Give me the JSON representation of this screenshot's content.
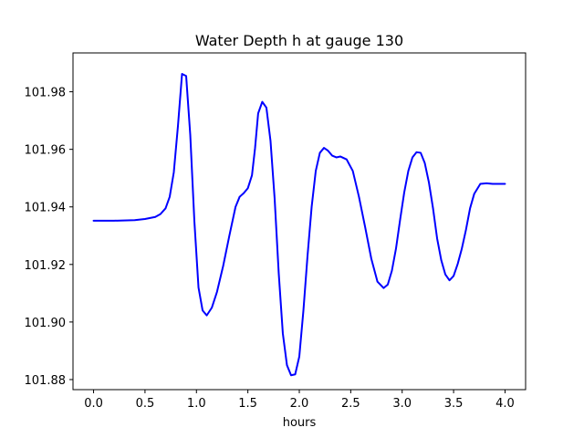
{
  "chart_data": {
    "type": "line",
    "title": "Water Depth h at gauge 130",
    "xlabel": "hours",
    "ylabel": "",
    "xlim": [
      -0.2,
      4.2
    ],
    "ylim": [
      101.8765,
      101.9935
    ],
    "grid": false,
    "x_ticks": [
      "0.0",
      "0.5",
      "1.0",
      "1.5",
      "2.0",
      "2.5",
      "3.0",
      "3.5",
      "4.0"
    ],
    "y_ticks": [
      "101.88",
      "101.90",
      "101.92",
      "101.94",
      "101.96",
      "101.98"
    ],
    "series": [
      {
        "color": "#0000ff",
        "x": [
          0.0,
          0.2,
          0.4,
          0.5,
          0.6,
          0.65,
          0.7,
          0.74,
          0.78,
          0.82,
          0.86,
          0.9,
          0.94,
          0.98,
          1.02,
          1.06,
          1.1,
          1.15,
          1.2,
          1.26,
          1.32,
          1.38,
          1.42,
          1.46,
          1.5,
          1.54,
          1.57,
          1.6,
          1.64,
          1.68,
          1.72,
          1.76,
          1.8,
          1.84,
          1.88,
          1.92,
          1.96,
          2.0,
          2.04,
          2.08,
          2.12,
          2.16,
          2.2,
          2.24,
          2.28,
          2.32,
          2.36,
          2.4,
          2.46,
          2.52,
          2.58,
          2.64,
          2.7,
          2.76,
          2.82,
          2.86,
          2.9,
          2.94,
          2.98,
          3.02,
          3.06,
          3.1,
          3.14,
          3.18,
          3.22,
          3.26,
          3.3,
          3.34,
          3.38,
          3.42,
          3.46,
          3.5,
          3.54,
          3.58,
          3.62,
          3.66,
          3.7,
          3.76,
          3.82,
          3.88,
          3.94,
          3.98,
          4.0
        ],
        "y": [
          101.9352,
          101.9352,
          101.9354,
          101.9358,
          101.9365,
          101.9375,
          101.9395,
          101.9435,
          101.952,
          101.968,
          101.9862,
          101.9855,
          101.965,
          101.935,
          101.912,
          101.904,
          101.9023,
          101.905,
          101.9105,
          101.9195,
          101.93,
          101.94,
          101.9435,
          101.9448,
          101.9465,
          101.951,
          101.9605,
          101.9725,
          101.9765,
          101.9745,
          101.963,
          101.943,
          101.917,
          101.896,
          101.885,
          101.8815,
          101.8818,
          101.888,
          101.904,
          101.923,
          101.94,
          101.9525,
          101.9588,
          101.9605,
          101.9595,
          101.9578,
          101.9572,
          101.9575,
          101.9565,
          101.9525,
          101.9435,
          101.933,
          101.922,
          101.914,
          101.9118,
          101.913,
          101.9178,
          101.9255,
          101.9355,
          101.945,
          101.9525,
          101.9572,
          101.959,
          101.9588,
          101.9552,
          101.9485,
          101.9395,
          101.929,
          101.9215,
          101.9165,
          101.9145,
          101.916,
          101.9202,
          101.9255,
          101.932,
          101.9395,
          101.9445,
          101.948,
          101.9482,
          101.948,
          101.948,
          101.948,
          101.948
        ]
      }
    ]
  }
}
